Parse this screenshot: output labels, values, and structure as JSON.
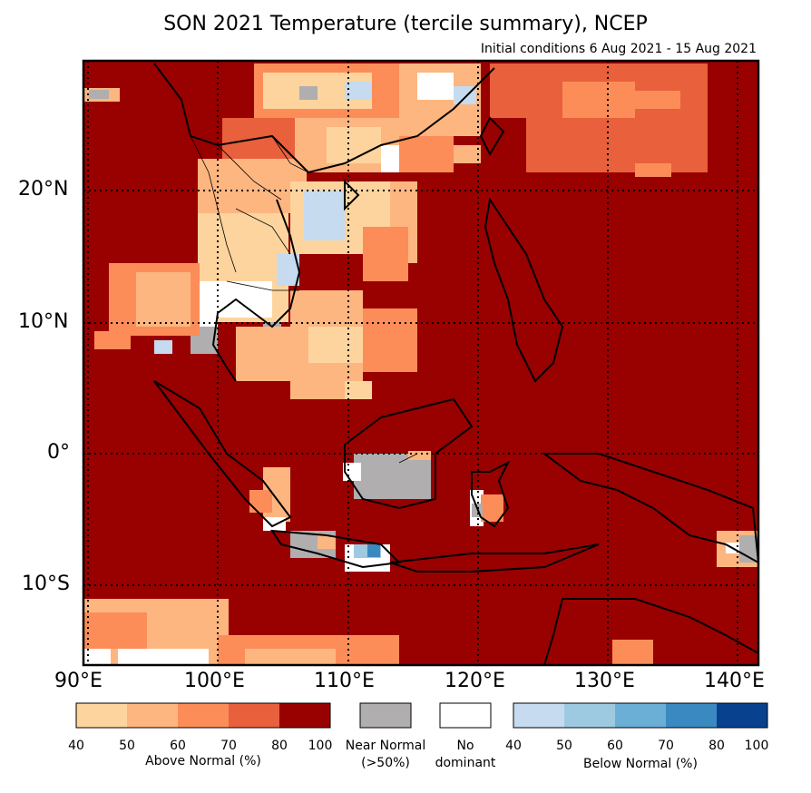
{
  "title": "SON 2021 Temperature (tercile summary), NCEP",
  "subtitle": "Initial conditions 6 Aug 2021 - 15 Aug 2021",
  "axes": {
    "lat_labels": [
      "20°N",
      "10°N",
      "0°",
      "10°S"
    ],
    "lon_labels": [
      "90°E",
      "100°E",
      "110°E",
      "120°E",
      "130°E",
      "140°E"
    ]
  },
  "legend": {
    "above": {
      "ticks": [
        "40",
        "50",
        "60",
        "70",
        "80",
        "100"
      ],
      "label": "Above Normal (%)",
      "colors": [
        "#fdd49e",
        "#fdb680",
        "#fc8d59",
        "#e8603c",
        "#990000"
      ]
    },
    "near": {
      "label1": "Near Normal",
      "label2": "(>50%)",
      "color": "#b0aeae"
    },
    "none": {
      "label1": "No",
      "label2": "dominant",
      "color": "#ffffff"
    },
    "below": {
      "ticks": [
        "40",
        "50",
        "60",
        "70",
        "80",
        "100"
      ],
      "label": "Below Normal (%)",
      "colors": [
        "#c6dbef",
        "#9ecae1",
        "#6baed6",
        "#3a8ac1",
        "#08428f"
      ]
    }
  },
  "colors": {
    "dark_red": "#990000",
    "grid_line": "#000000"
  }
}
